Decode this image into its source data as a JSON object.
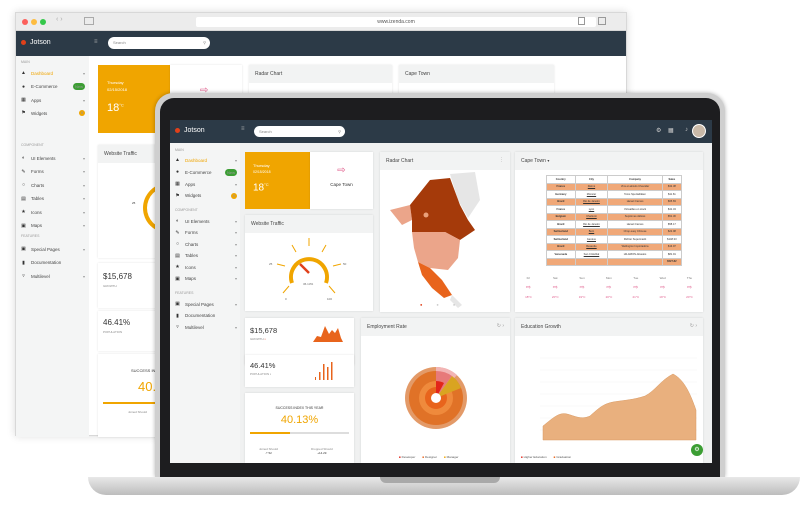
{
  "browser": {
    "url": "www.izenda.com"
  },
  "app": {
    "name": "Jotson",
    "search_placeholder": "Search"
  },
  "sidebar": {
    "sections": [
      {
        "title": "Main",
        "items": [
          {
            "label": "Dashboard",
            "icon": "home-icon",
            "active": true,
            "chevron": true
          },
          {
            "label": "E-Commerce",
            "icon": "bag-icon",
            "badge": "New"
          },
          {
            "label": "Apps",
            "icon": "grid-icon",
            "chevron": true
          },
          {
            "label": "Widgets",
            "icon": "flag-icon",
            "badge": "8"
          }
        ]
      },
      {
        "title": "Component",
        "items": [
          {
            "label": "UI Elements",
            "icon": "layers-icon",
            "chevron": true
          },
          {
            "label": "Forms",
            "icon": "pencil-icon",
            "chevron": true
          },
          {
            "label": "Charts",
            "icon": "pie-icon",
            "chevron": true
          },
          {
            "label": "Tables",
            "icon": "table-icon",
            "chevron": true
          },
          {
            "label": "Icons",
            "icon": "star-icon",
            "chevron": true
          },
          {
            "label": "Maps",
            "icon": "map-icon",
            "chevron": true
          }
        ]
      },
      {
        "title": "Features",
        "items": [
          {
            "label": "Special Pages",
            "icon": "page-icon",
            "chevron": true
          },
          {
            "label": "Documentation",
            "icon": "book-icon"
          },
          {
            "label": "Multilevel",
            "icon": "filter-icon",
            "chevron": true
          }
        ]
      }
    ]
  },
  "weather": {
    "day": "Thursday",
    "date": "02/15/2018",
    "temp": "18",
    "unit": "°C",
    "city": "Cape Town"
  },
  "traffic": {
    "title": "Website Traffic",
    "ticks": [
      "0",
      "25",
      "50",
      "100"
    ],
    "value_label": "36.13%",
    "value": 36.13
  },
  "radar": {
    "title": "Radar Chart"
  },
  "capetown": {
    "title": "Cape Town",
    "table": {
      "headers": [
        "Country",
        "City",
        "Company",
        "Sales"
      ],
      "rows": [
        [
          "France",
          "Reims",
          "Vins et alcools Chevalier",
          "$32.38"
        ],
        [
          "Germany",
          "Münster",
          "Toms Spezialitäten",
          "$11.61"
        ],
        [
          "Brazil",
          "Rio de Janeiro",
          "Hanari Carnes",
          "$65.83"
        ],
        [
          "France",
          "Lyon",
          "Victuailles en stock",
          "$41.34"
        ],
        [
          "Belgium",
          "Charleroi",
          "Suprêmes délices",
          "$51.30"
        ],
        [
          "Brazil",
          "Rio de Janeiro",
          "Hanari Carnes",
          "$58.17"
        ],
        [
          "Switzerland",
          "Bern",
          "Chop-suey Chinese",
          "$22.98"
        ],
        [
          "Switzerland",
          "Genève",
          "Richter Supermarkt",
          "$148.33"
        ],
        [
          "Brazil",
          "Resende",
          "Wellington Importadora",
          "$13.97"
        ],
        [
          "Venezuela",
          "San Cristóbal",
          "HILARION-Abastos",
          "$81.91"
        ]
      ],
      "total": "$527.82"
    },
    "forecast": [
      {
        "day": "Fri",
        "temp": "18°C"
      },
      {
        "day": "Sat",
        "temp": "20°C"
      },
      {
        "day": "Sun",
        "temp": "19°C"
      },
      {
        "day": "Mon",
        "temp": "20°C"
      },
      {
        "day": "Tue",
        "temp": "21°C"
      },
      {
        "day": "Wed",
        "temp": "19°C"
      },
      {
        "day": "Thu",
        "temp": "20°C"
      }
    ]
  },
  "growth": {
    "value": "$15,678",
    "label": "GROWTH"
  },
  "population": {
    "value": "46.41%",
    "label": "POPULATION"
  },
  "success": {
    "title": "SUCCESS INDEX THIS YEAR",
    "value": "40.13%",
    "progress": 40,
    "joined_label": "Joined Should",
    "joined_value": "52",
    "dropped_label": "Dropped Should",
    "dropped_value": "+14.29"
  },
  "employment": {
    "title": "Employment Rate",
    "legend": [
      "Developer",
      "Designer",
      "Manager"
    ]
  },
  "education": {
    "title": "Education Growth",
    "legend": [
      "Higher Education",
      "Graduation"
    ]
  },
  "colors": {
    "accent": "#f0a500",
    "header": "#2c3a47",
    "orange": "#e8641c",
    "area": "#e9b07e",
    "green": "#3c9e34"
  }
}
